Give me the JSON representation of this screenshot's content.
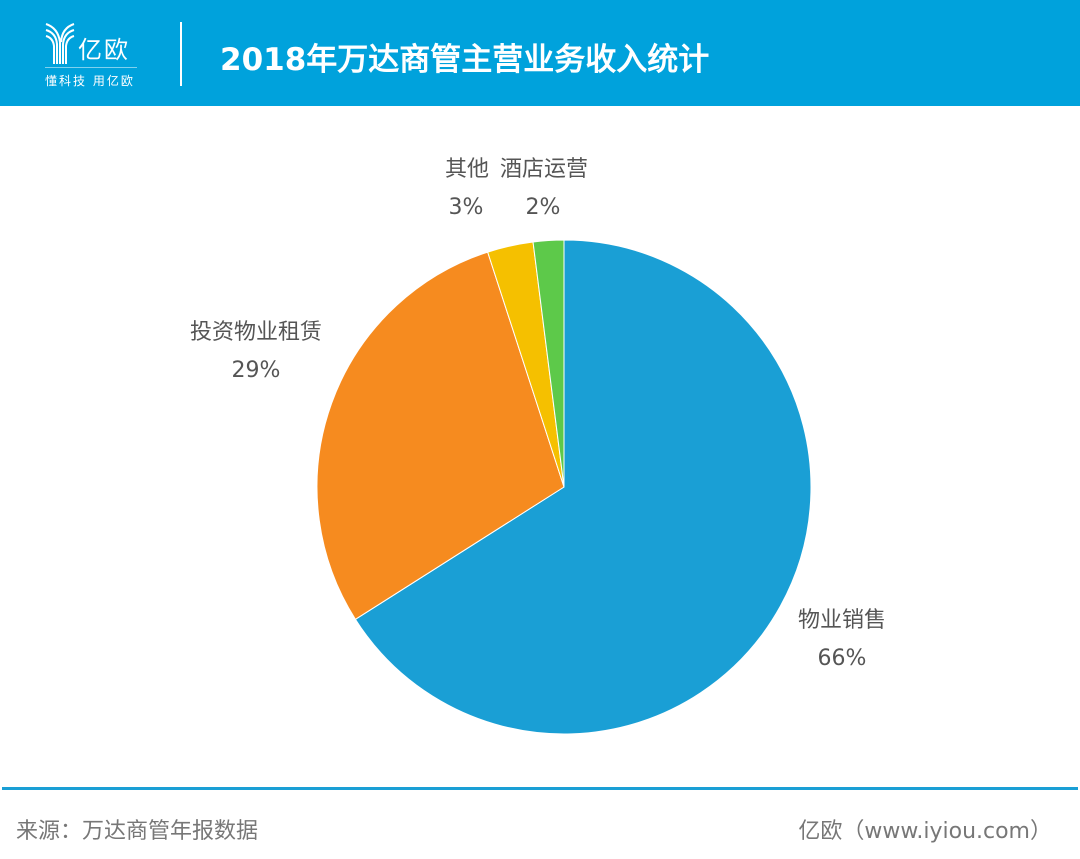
{
  "header": {
    "logo_text": "亿欧",
    "slogan": "懂科技 用亿欧",
    "title": "2018年万达商管主营业务收入统计"
  },
  "chart_data": {
    "type": "pie",
    "title": "2018年万达商管主营业务收入统计",
    "start_angle": "12 o'clock, clockwise",
    "slices": [
      {
        "label": "物业销售",
        "value": 66,
        "display": "66%",
        "color": "#1a9fd5"
      },
      {
        "label": "投资物业租赁",
        "value": 29,
        "display": "29%",
        "color": "#f68b1f"
      },
      {
        "label": "其他",
        "value": 3,
        "display": "3%",
        "color": "#f5c000"
      },
      {
        "label": "酒店运营",
        "value": 2,
        "display": "2%",
        "color": "#5dc94a"
      }
    ]
  },
  "footer": {
    "source": "来源：万达商管年报数据",
    "credit": "亿欧（www.iyiou.com）"
  }
}
